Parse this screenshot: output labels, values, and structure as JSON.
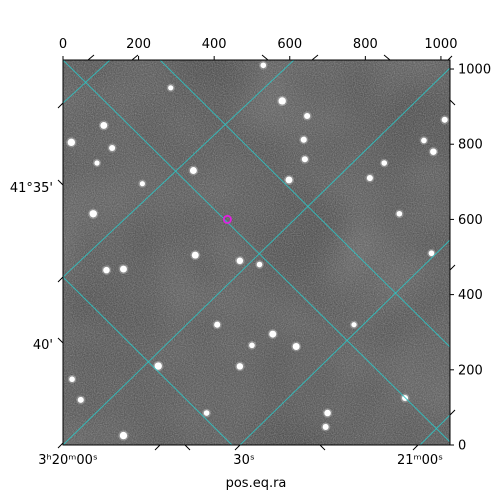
{
  "chart_data": {
    "type": "scatter",
    "title": "",
    "xlabel": "pos.eq.ra",
    "ylabel": "",
    "pixel_axes": {
      "xlim": [
        0,
        1024
      ],
      "ylim": [
        0,
        1024
      ],
      "top_ticks": [
        "0",
        "200",
        "400",
        "600",
        "800",
        "1000"
      ],
      "top_tick_values": [
        0,
        200,
        400,
        600,
        800,
        1000
      ],
      "right_ticks": [
        "0",
        "200",
        "400",
        "600",
        "800",
        "1000"
      ],
      "right_tick_values": [
        0,
        200,
        400,
        600,
        800,
        1000
      ]
    },
    "world_axes": {
      "ra_tick_labels": [
        "3ʰ20ᵐ00ˢ",
        "30ˢ",
        "21ᵐ00ˢ"
      ],
      "dec_tick_labels": [
        "41°35'",
        "40'"
      ]
    },
    "grid": true,
    "grid_color": "#2ec4c4",
    "marker": {
      "x": 435,
      "y": 600,
      "color": "#e020e0"
    },
    "stars": [
      {
        "x": 22,
        "y": 805,
        "b": 1.0
      },
      {
        "x": 108,
        "y": 850,
        "b": 0.9
      },
      {
        "x": 130,
        "y": 790,
        "b": 0.7
      },
      {
        "x": 80,
        "y": 615,
        "b": 1.0
      },
      {
        "x": 160,
        "y": 468,
        "b": 0.9
      },
      {
        "x": 115,
        "y": 465,
        "b": 0.8
      },
      {
        "x": 345,
        "y": 730,
        "b": 0.9
      },
      {
        "x": 350,
        "y": 505,
        "b": 0.9
      },
      {
        "x": 468,
        "y": 490,
        "b": 0.8
      },
      {
        "x": 580,
        "y": 915,
        "b": 1.0
      },
      {
        "x": 598,
        "y": 705,
        "b": 0.9
      },
      {
        "x": 640,
        "y": 760,
        "b": 0.7
      },
      {
        "x": 646,
        "y": 875,
        "b": 0.7
      },
      {
        "x": 637,
        "y": 812,
        "b": 0.7
      },
      {
        "x": 555,
        "y": 295,
        "b": 0.9
      },
      {
        "x": 617,
        "y": 262,
        "b": 0.9
      },
      {
        "x": 500,
        "y": 265,
        "b": 0.6
      },
      {
        "x": 252,
        "y": 210,
        "b": 1.0
      },
      {
        "x": 468,
        "y": 209,
        "b": 0.8
      },
      {
        "x": 408,
        "y": 320,
        "b": 0.7
      },
      {
        "x": 160,
        "y": 25,
        "b": 1.0
      },
      {
        "x": 700,
        "y": 85,
        "b": 0.8
      },
      {
        "x": 695,
        "y": 48,
        "b": 0.7
      },
      {
        "x": 47,
        "y": 120,
        "b": 0.7
      },
      {
        "x": 812,
        "y": 710,
        "b": 0.7
      },
      {
        "x": 980,
        "y": 780,
        "b": 0.8
      },
      {
        "x": 955,
        "y": 810,
        "b": 0.6
      },
      {
        "x": 1010,
        "y": 865,
        "b": 0.7
      },
      {
        "x": 890,
        "y": 615,
        "b": 0.6
      },
      {
        "x": 850,
        "y": 750,
        "b": 0.6
      },
      {
        "x": 975,
        "y": 510,
        "b": 0.6
      },
      {
        "x": 905,
        "y": 125,
        "b": 0.7
      },
      {
        "x": 380,
        "y": 85,
        "b": 0.6
      },
      {
        "x": 24,
        "y": 175,
        "b": 0.6
      },
      {
        "x": 90,
        "y": 750,
        "b": 0.5
      },
      {
        "x": 520,
        "y": 480,
        "b": 0.6
      },
      {
        "x": 210,
        "y": 695,
        "b": 0.5
      },
      {
        "x": 530,
        "y": 1010,
        "b": 0.6
      },
      {
        "x": 285,
        "y": 950,
        "b": 0.5
      },
      {
        "x": 770,
        "y": 320,
        "b": 0.5
      }
    ]
  }
}
